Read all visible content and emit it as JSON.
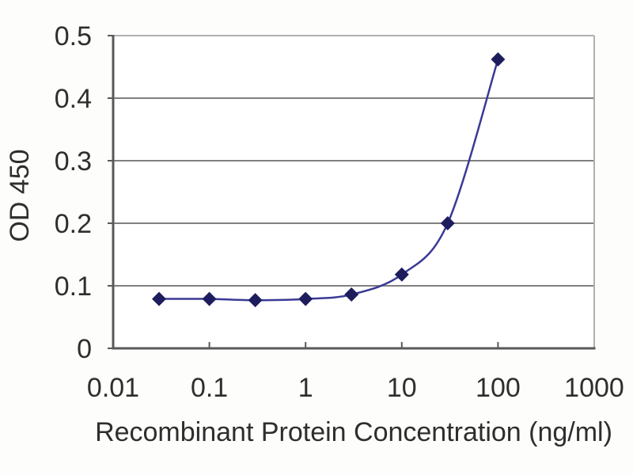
{
  "chart_data": {
    "type": "line",
    "title": "",
    "xlabel": "Recombinant Protein Concentration (ng/ml)",
    "ylabel": "OD 450",
    "x_scale": "log",
    "xlim": [
      0.01,
      1000
    ],
    "ylim": [
      0,
      0.5
    ],
    "x_ticks": [
      "0.01",
      "0.1",
      "1",
      "10",
      "100",
      "1000"
    ],
    "y_ticks": [
      "0",
      "0.1",
      "0.2",
      "0.3",
      "0.4",
      "0.5"
    ],
    "grid": "horizontal",
    "legend": "none",
    "series": [
      {
        "name": "OD 450 vs concentration",
        "x": [
          0.03,
          0.1,
          0.3,
          1,
          3,
          10,
          30,
          100
        ],
        "y": [
          0.079,
          0.079,
          0.077,
          0.079,
          0.086,
          0.118,
          0.2,
          0.462
        ],
        "marker": "diamond",
        "line_color": "#3a3a96",
        "marker_color": "#1d1d5e"
      }
    ],
    "colors": {
      "gridline": "#808080",
      "axis": "#595959",
      "border": "#b0b0b0",
      "tick_text": "#2e2e2e",
      "title_text": "#2e2e2e",
      "plot_background": "#ffffff",
      "page_background": "#fdfdfb"
    }
  }
}
